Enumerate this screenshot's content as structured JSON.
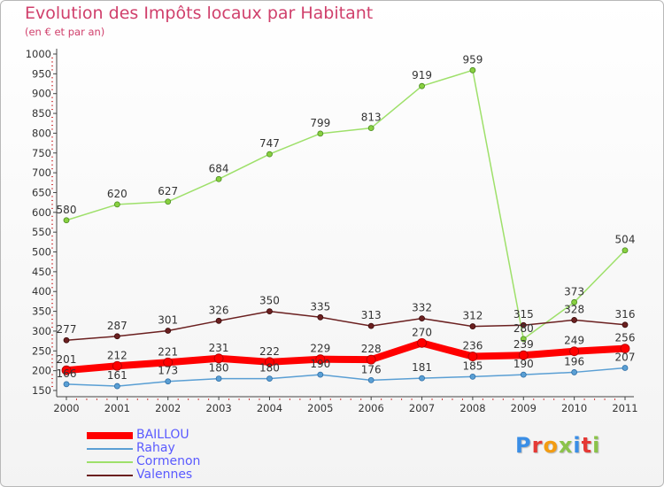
{
  "header": {
    "title": "Evolution des Impôts locaux par Habitant",
    "subtitle": "(en € et par an)"
  },
  "logo": {
    "text": "Proxiti",
    "colors": [
      "#3a8ee6",
      "#e53935",
      "#f39c12",
      "#8bc34a",
      "#3a8ee6",
      "#e53935",
      "#8bc34a"
    ]
  },
  "chart_data": {
    "type": "line",
    "categories": [
      "2000",
      "2001",
      "2002",
      "2003",
      "2004",
      "2005",
      "2006",
      "2007",
      "2008",
      "2009",
      "2010",
      "2011"
    ],
    "ylim": [
      150,
      1000
    ],
    "yticks": [
      150,
      200,
      250,
      300,
      350,
      400,
      450,
      500,
      550,
      600,
      650,
      700,
      750,
      800,
      850,
      900,
      950,
      1000
    ],
    "grid": false,
    "legend_position": "bottom-left",
    "series": [
      {
        "name": "BAILLOU",
        "color": "#ff0000",
        "values": [
          201,
          212,
          221,
          231,
          222,
          229,
          228,
          270,
          236,
          239,
          249,
          256
        ]
      },
      {
        "name": "Rahay",
        "color": "#5a9fd4",
        "values": [
          166,
          161,
          173,
          180,
          180,
          190,
          176,
          181,
          185,
          190,
          196,
          207
        ]
      },
      {
        "name": "Cormenon",
        "color": "#9ee06a",
        "values": [
          580,
          620,
          627,
          684,
          747,
          799,
          813,
          919,
          959,
          280,
          373,
          504
        ]
      },
      {
        "name": "Valennes",
        "color": "#6b2020",
        "values": [
          277,
          287,
          301,
          326,
          350,
          335,
          313,
          332,
          312,
          315,
          328,
          316
        ]
      }
    ],
    "point_labels": [
      [
        "201",
        "212",
        "221",
        "231",
        "222",
        "229",
        "228",
        "270",
        "236",
        "239",
        "249",
        "256"
      ],
      [
        "166",
        "161",
        "173",
        "180",
        "180",
        "190",
        "176",
        "181",
        "185",
        "190",
        "196",
        "207"
      ],
      [
        "580",
        "620",
        "627",
        "684",
        "747",
        "799",
        "813",
        "919",
        "959",
        "280",
        "373",
        "504"
      ],
      [
        "277",
        "287",
        "301",
        "326",
        "350",
        "335",
        "313",
        "332",
        "312",
        "315",
        "328",
        "316"
      ]
    ]
  }
}
